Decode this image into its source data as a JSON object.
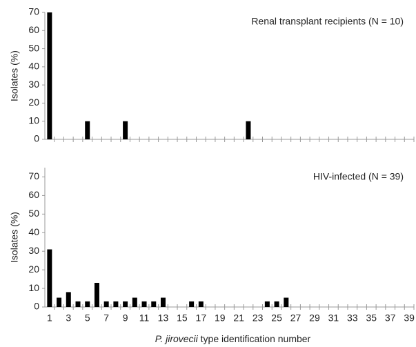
{
  "chart_data": [
    {
      "type": "bar",
      "annotation": "Renal transplant recipients (N = 10)",
      "y_label": "Isolates (%)",
      "categories": [
        null,
        null,
        null,
        null,
        null,
        null,
        null,
        null,
        null,
        null,
        null,
        null,
        null,
        null,
        null,
        null,
        null,
        null,
        null,
        null,
        null,
        null,
        null,
        null,
        null,
        null,
        null,
        null,
        null,
        null,
        null,
        null,
        null,
        null,
        null,
        null,
        null,
        null,
        null
      ],
      "values": [
        70,
        0,
        0,
        0,
        10,
        0,
        0,
        0,
        10,
        0,
        0,
        0,
        0,
        0,
        0,
        0,
        0,
        0,
        0,
        0,
        0,
        10,
        0,
        0,
        0,
        0,
        0,
        0,
        0,
        0,
        0,
        0,
        0,
        0,
        0,
        0,
        0,
        0,
        0
      ],
      "color": "#000000",
      "ylim": [
        0,
        70
      ],
      "yticks": [
        0,
        10,
        20,
        30,
        40,
        50,
        60,
        70
      ]
    },
    {
      "type": "bar",
      "annotation": "HIV-infected (N = 39)",
      "y_label": "Isolates (%)",
      "x_label_italic": "P. jirovecii",
      "x_label": "type identification number",
      "categories": [
        "1",
        null,
        "3",
        null,
        "5",
        null,
        "7",
        null,
        "9",
        null,
        "11",
        null,
        "13",
        null,
        "15",
        null,
        "17",
        null,
        "19",
        null,
        "21",
        null,
        "23",
        null,
        "25",
        null,
        "27",
        null,
        "29",
        null,
        "31",
        null,
        "33",
        null,
        "35",
        null,
        "37",
        null,
        "39"
      ],
      "values": [
        31,
        5,
        8,
        3,
        3,
        13,
        3,
        3,
        3,
        5,
        3,
        3,
        5,
        0,
        0,
        3,
        3,
        0,
        0,
        0,
        0,
        0,
        0,
        3,
        3,
        5,
        0,
        0,
        0,
        0,
        0,
        0,
        0,
        0,
        0,
        0,
        0,
        0,
        0
      ],
      "color": "#000000",
      "ylim": [
        0,
        75
      ],
      "yticks": [
        0,
        10,
        20,
        30,
        40,
        50,
        60,
        70
      ]
    }
  ]
}
